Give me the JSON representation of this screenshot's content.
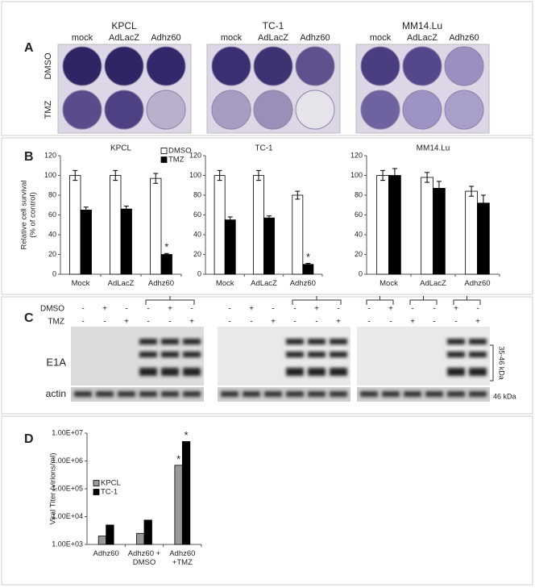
{
  "letters": [
    "A",
    "B",
    "C",
    "D"
  ],
  "panel_a": {
    "groups": [
      {
        "title": "KPCL",
        "columns": [
          "mock",
          "AdLacZ",
          "Adhz60"
        ]
      },
      {
        "title": "TC-1",
        "columns": [
          "mock",
          "AdLacZ",
          "Adhz60"
        ]
      },
      {
        "title": "MM14.Lu",
        "columns": [
          "mock",
          "AdLacZ",
          "Adhz60"
        ]
      }
    ],
    "rows": [
      "DMSO",
      "TMZ"
    ]
  },
  "chart_data": [
    {
      "type": "bar",
      "title": "KPCL",
      "ylabel": [
        "Relative cell survival",
        "(% of control)"
      ],
      "categories": [
        "Mock",
        "AdLacZ",
        "Adhz60"
      ],
      "series": [
        {
          "name": "DMSO",
          "color": "#ffffff",
          "values": [
            100,
            100,
            97
          ],
          "errors": [
            5,
            5,
            5
          ]
        },
        {
          "name": "TMZ",
          "color": "#000000",
          "values": [
            65,
            66,
            20
          ],
          "errors": [
            3,
            3,
            1
          ]
        }
      ],
      "ylim": [
        0,
        120
      ],
      "yticks": [
        0,
        20,
        40,
        60,
        80,
        100,
        120
      ],
      "legend": "top-right",
      "annotations": [
        {
          "text": "*",
          "series": 1,
          "category": 2
        }
      ]
    },
    {
      "type": "bar",
      "title": "TC-1",
      "categories": [
        "Mock",
        "AdLacZ",
        "Adhz60"
      ],
      "series": [
        {
          "color": "#ffffff",
          "values": [
            100,
            100,
            80
          ],
          "errors": [
            5,
            5,
            4
          ]
        },
        {
          "color": "#000000",
          "values": [
            55,
            57,
            10
          ],
          "errors": [
            3,
            2,
            1
          ]
        }
      ],
      "ylim": [
        0,
        120
      ],
      "yticks": [
        0,
        20,
        40,
        60,
        80,
        100,
        120
      ],
      "annotations": [
        {
          "text": "*",
          "series": 1,
          "category": 2
        }
      ]
    },
    {
      "type": "bar",
      "title": "MM14.Lu",
      "categories": [
        "Mock",
        "AdLacZ",
        "Adhz60"
      ],
      "series": [
        {
          "color": "#ffffff",
          "values": [
            100,
            98,
            84
          ],
          "errors": [
            5,
            5,
            5
          ]
        },
        {
          "color": "#000000",
          "values": [
            100,
            87,
            72
          ],
          "errors": [
            7,
            7,
            8
          ]
        }
      ],
      "ylim": [
        0,
        120
      ],
      "yticks": [
        0,
        20,
        40,
        60,
        80,
        100,
        120
      ]
    },
    {
      "type": "bar",
      "ylog": true,
      "ylabel": [
        "Viral Titer (virions/ml)"
      ],
      "categories": [
        "Adhz60",
        "Adhz60 + DMSO",
        "Adhz60 +TMZ"
      ],
      "series": [
        {
          "name": "KPCL",
          "color": "#999999",
          "values": [
            2000,
            2500,
            700000
          ]
        },
        {
          "name": "TC-1",
          "color": "#000000",
          "values": [
            5000,
            7500,
            5000000
          ]
        }
      ],
      "ylim": [
        1000,
        10000000
      ],
      "yticks": [
        {
          "value": 1000,
          "label": "1.00E+03"
        },
        {
          "value": 10000,
          "label": "1.00E+04"
        },
        {
          "value": 100000,
          "label": "1.00E+05"
        },
        {
          "value": 1000000,
          "label": "1.00E+06"
        },
        {
          "value": 10000000,
          "label": "1.00E+07"
        }
      ],
      "legend": "left",
      "annotations": [
        {
          "text": "*",
          "series": 0,
          "category": 2
        },
        {
          "text": "*",
          "series": 1,
          "category": 2
        }
      ]
    }
  ],
  "panel_c": {
    "rows": [
      "DMSO",
      "TMZ"
    ],
    "blots": [
      {
        "dmso": [
          "-",
          "+",
          "-",
          "-",
          "+",
          "-"
        ],
        "tmz": [
          "-",
          "-",
          "+",
          "-",
          "-",
          "+"
        ]
      },
      {
        "dmso": [
          "-",
          "+",
          "-",
          "-",
          "+",
          "-"
        ],
        "tmz": [
          "-",
          "-",
          "+",
          "-",
          "-",
          "+"
        ]
      },
      {
        "dmso": [
          "-",
          "+",
          "-",
          "-",
          "+",
          "-"
        ],
        "tmz": [
          "-",
          "-",
          "+",
          "-",
          "-",
          "+"
        ]
      }
    ],
    "bands": [
      "E1A",
      "actin"
    ],
    "markers": [
      "35-46 kDa",
      "46 kDa"
    ]
  }
}
